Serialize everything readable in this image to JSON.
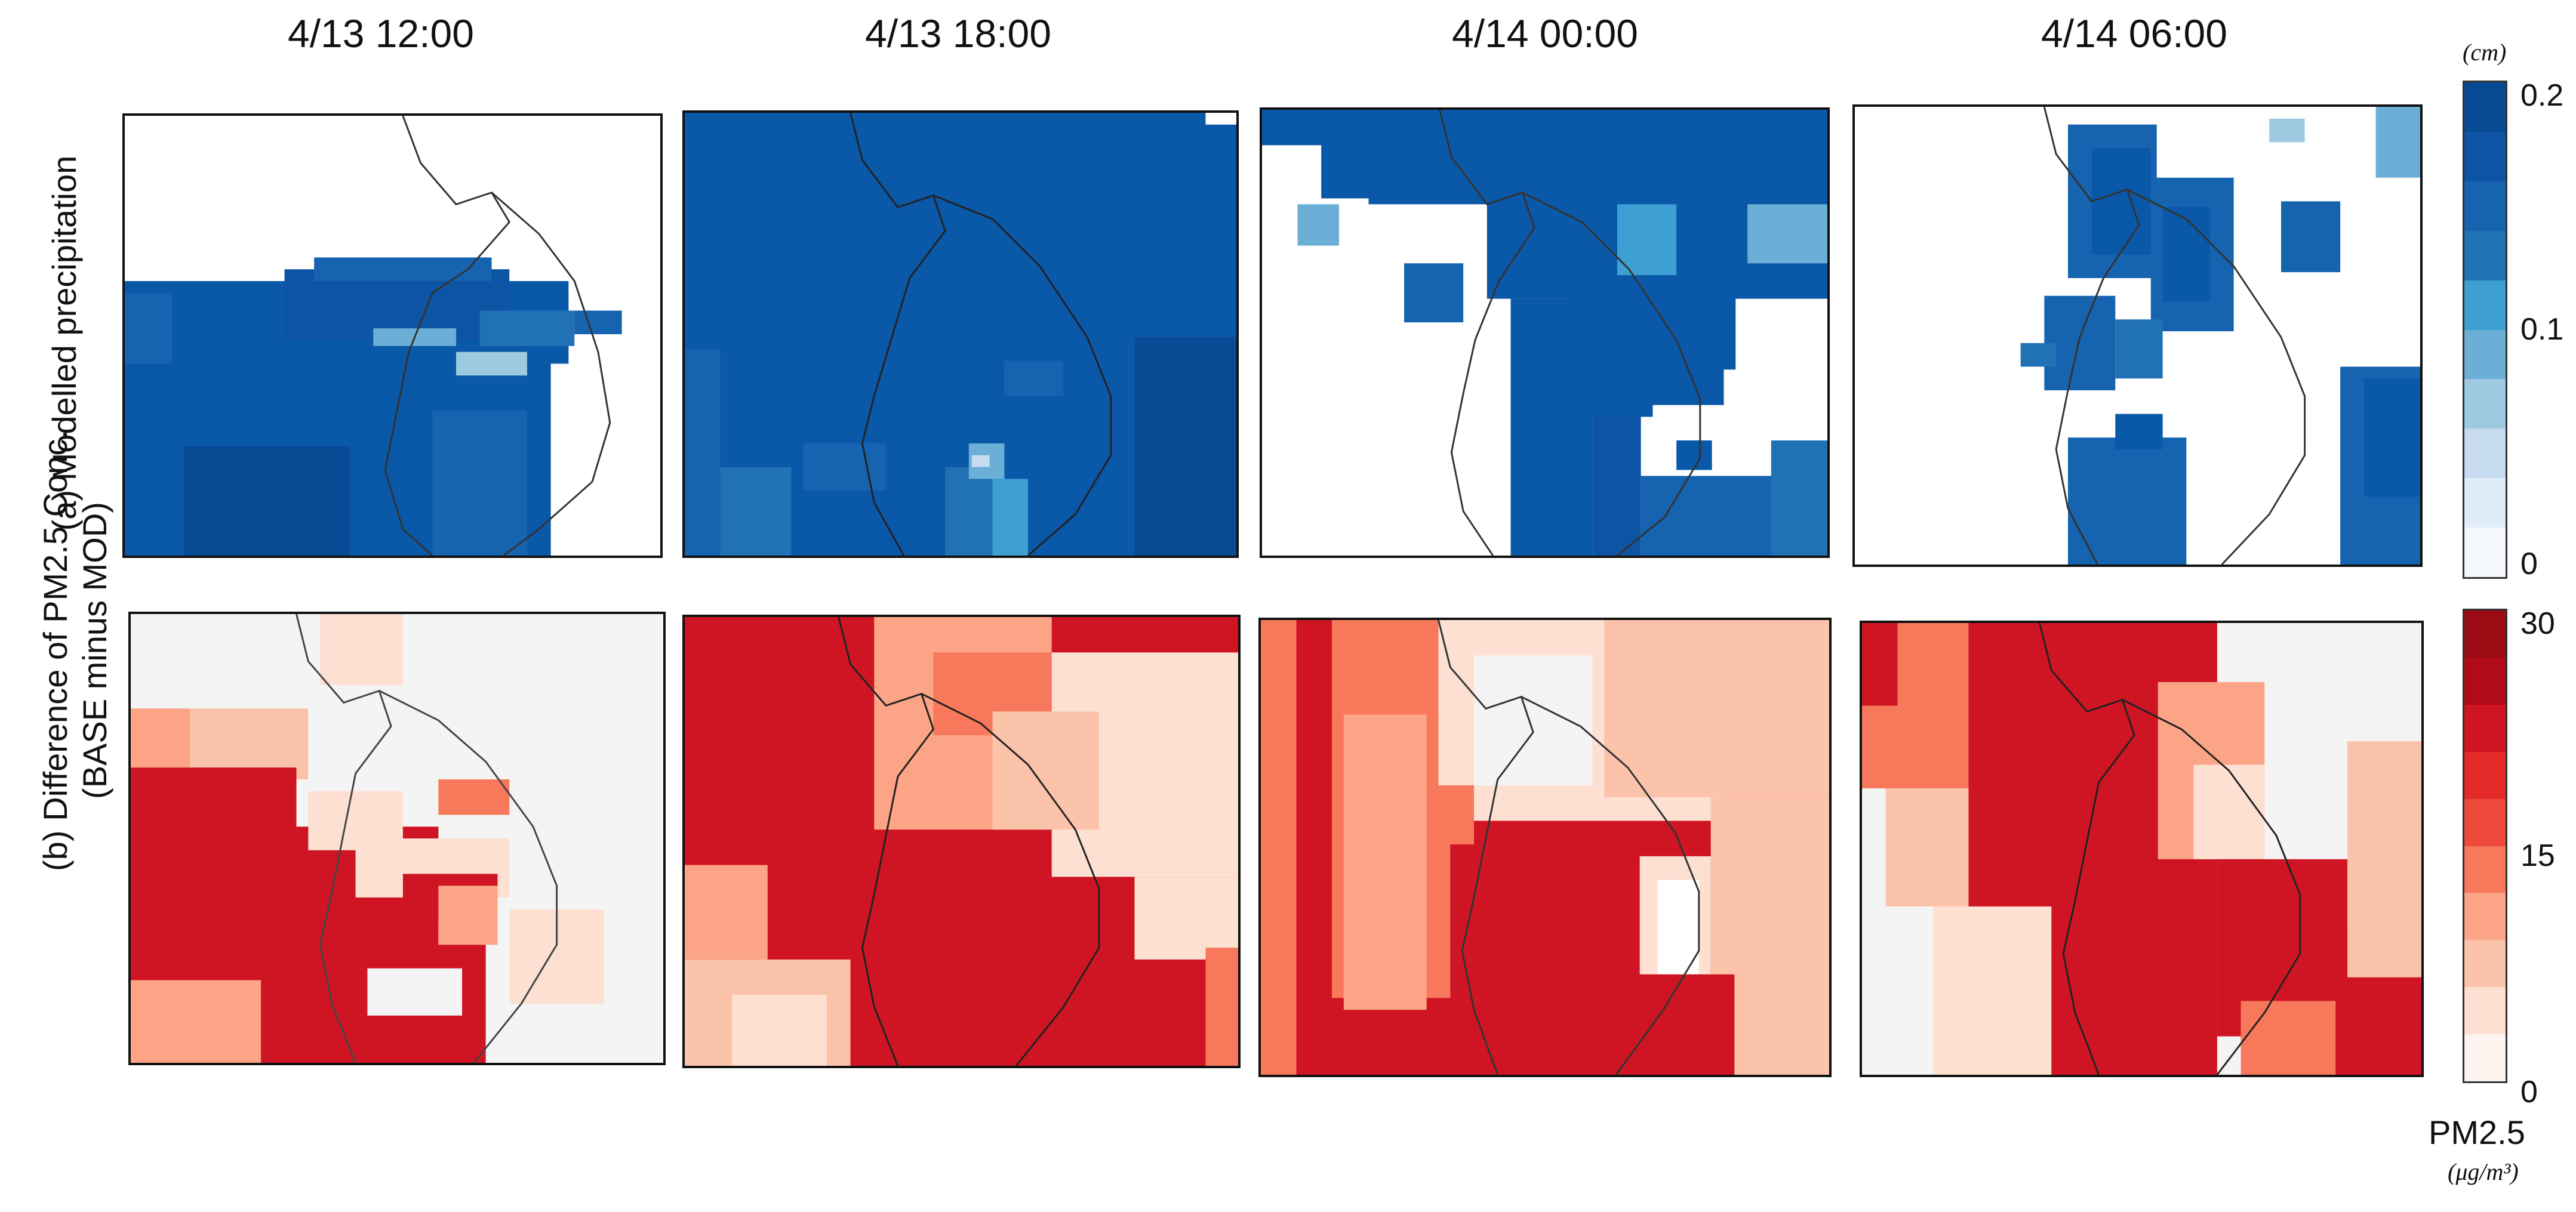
{
  "columns": [
    "4/13 12:00",
    "4/13 18:00",
    "4/14 00:00",
    "4/14 06:00"
  ],
  "rows": {
    "a": {
      "label": "(a) Modelled precipitation"
    },
    "b": {
      "label": "(b) Difference of PM2.5 Conc.\n(BASE minus MOD)"
    }
  },
  "colorbars": {
    "precip": {
      "unit": "(cm)",
      "ticks": [
        "0.2",
        "0.1",
        "0"
      ],
      "range": [
        0,
        0.2
      ],
      "colors": [
        "#f4f8fd",
        "#e0ecf8",
        "#c6dbef",
        "#9ecae1",
        "#6baed6",
        "#3d9fd2",
        "#2171b5",
        "#1663b0",
        "#0d55a4",
        "#084a94"
      ]
    },
    "pm25": {
      "title": "PM2.5",
      "unit": "(μg/m³)",
      "ticks": [
        "30",
        "15",
        "0"
      ],
      "range": [
        0,
        30
      ],
      "colors": [
        "#fdf3ef",
        "#fde0d2",
        "#fcc3ab",
        "#fca486",
        "#f7785a",
        "#ed4a3c",
        "#e52a2a",
        "#cf1523",
        "#b00c18",
        "#9c0a14"
      ]
    }
  },
  "colors": {
    "precip_main": "#0a58a8",
    "pm_main": "#cf1523",
    "background_gray": "#f4f4f4",
    "coastline": "#333333"
  }
}
